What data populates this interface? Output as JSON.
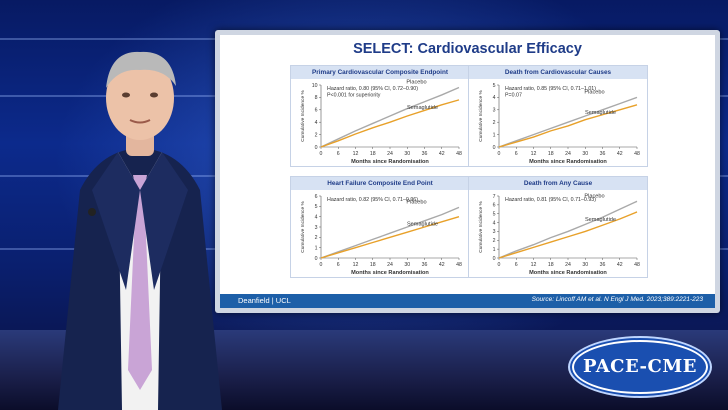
{
  "slide": {
    "title": "SELECT: Cardiovascular Efficacy",
    "footer_left": "Deanfield | UCL",
    "footer_right": "Source: Lincoff AM et al. N Engl J Med. 2023;389:2221-223"
  },
  "logo": {
    "text": "PACE-CME"
  },
  "colors": {
    "placebo": "#a9a9a9",
    "semaglutide": "#e8a12a",
    "title": "#1f3c88",
    "panel_header": "#d7e2f3"
  },
  "chart_data": [
    {
      "type": "line",
      "title": "Primary Cardiovascular Composite Endpoint",
      "xlabel": "Months since Randomisation",
      "ylabel": "Cumulative Incidence %",
      "x_ticks": [
        0,
        6,
        12,
        18,
        24,
        30,
        36,
        42,
        48
      ],
      "y_ticks": [
        0,
        2,
        4,
        6,
        8,
        10
      ],
      "xlim": [
        0,
        48
      ],
      "ylim": [
        0,
        10
      ],
      "annotation": [
        "Hazard ratio, 0.80 (95% CI, 0.72–0.90)",
        "P<0.001 for superiority"
      ],
      "series": [
        {
          "name": "Placebo",
          "x": [
            0,
            6,
            12,
            18,
            24,
            30,
            36,
            42,
            48
          ],
          "values": [
            0,
            1.3,
            2.6,
            3.8,
            5.0,
            6.2,
            7.3,
            8.4,
            9.6
          ]
        },
        {
          "name": "Semaglutide",
          "x": [
            0,
            6,
            12,
            18,
            24,
            30,
            36,
            42,
            48
          ],
          "values": [
            0,
            1.0,
            2.1,
            3.1,
            4.0,
            5.0,
            5.9,
            6.8,
            7.6
          ]
        }
      ]
    },
    {
      "type": "line",
      "title": "Death from Cardiovascular Causes",
      "xlabel": "Months since Randomisation",
      "ylabel": "Cumulative Incidence %",
      "x_ticks": [
        0,
        6,
        12,
        18,
        24,
        30,
        36,
        42,
        48
      ],
      "y_ticks": [
        0,
        1,
        2,
        3,
        4,
        5
      ],
      "xlim": [
        0,
        48
      ],
      "ylim": [
        0,
        5
      ],
      "annotation": [
        "Hazard ratio, 0.85 (95% CI, 0.71–1.01)",
        "P=0.07"
      ],
      "series": [
        {
          "name": "Placebo",
          "x": [
            0,
            6,
            12,
            18,
            24,
            30,
            36,
            42,
            48
          ],
          "values": [
            0,
            0.5,
            1.0,
            1.5,
            2.0,
            2.5,
            3.0,
            3.5,
            4.0
          ]
        },
        {
          "name": "Semaglutide",
          "x": [
            0,
            6,
            12,
            18,
            24,
            30,
            36,
            42,
            48
          ],
          "values": [
            0,
            0.4,
            0.8,
            1.3,
            1.7,
            2.2,
            2.6,
            3.0,
            3.4
          ]
        }
      ]
    },
    {
      "type": "line",
      "title": "Heart Failure Composite End Point",
      "xlabel": "Months since Randomisation",
      "ylabel": "Cumulative Incidence %",
      "x_ticks": [
        0,
        6,
        12,
        18,
        24,
        30,
        36,
        42,
        48
      ],
      "y_ticks": [
        0,
        1,
        2,
        3,
        4,
        5,
        6
      ],
      "xlim": [
        0,
        48
      ],
      "ylim": [
        0,
        6
      ],
      "annotation": [
        "Hazard ratio, 0.82 (95% CI, 0.71–0.96)"
      ],
      "series": [
        {
          "name": "Placebo",
          "x": [
            0,
            6,
            12,
            18,
            24,
            30,
            36,
            42,
            48
          ],
          "values": [
            0,
            0.6,
            1.2,
            1.8,
            2.4,
            3.0,
            3.6,
            4.2,
            4.9
          ]
        },
        {
          "name": "Semaglutide",
          "x": [
            0,
            6,
            12,
            18,
            24,
            30,
            36,
            42,
            48
          ],
          "values": [
            0,
            0.5,
            1.0,
            1.5,
            2.0,
            2.5,
            3.0,
            3.5,
            4.0
          ]
        }
      ]
    },
    {
      "type": "line",
      "title": "Death from Any Cause",
      "xlabel": "Months since Randomisation",
      "ylabel": "Cumulative Incidence %",
      "x_ticks": [
        0,
        6,
        12,
        18,
        24,
        30,
        36,
        42,
        48
      ],
      "y_ticks": [
        0,
        1,
        2,
        3,
        4,
        5,
        6,
        7
      ],
      "xlim": [
        0,
        48
      ],
      "ylim": [
        0,
        7
      ],
      "annotation": [
        "Hazard ratio, 0.81 (95% CI, 0.71–0.93)"
      ],
      "series": [
        {
          "name": "Placebo",
          "x": [
            0,
            6,
            12,
            18,
            24,
            30,
            36,
            42,
            48
          ],
          "values": [
            0,
            0.8,
            1.5,
            2.3,
            3.0,
            3.8,
            4.6,
            5.5,
            6.4
          ]
        },
        {
          "name": "Semaglutide",
          "x": [
            0,
            6,
            12,
            18,
            24,
            30,
            36,
            42,
            48
          ],
          "values": [
            0,
            0.6,
            1.2,
            1.8,
            2.4,
            3.0,
            3.7,
            4.4,
            5.2
          ]
        }
      ]
    }
  ]
}
